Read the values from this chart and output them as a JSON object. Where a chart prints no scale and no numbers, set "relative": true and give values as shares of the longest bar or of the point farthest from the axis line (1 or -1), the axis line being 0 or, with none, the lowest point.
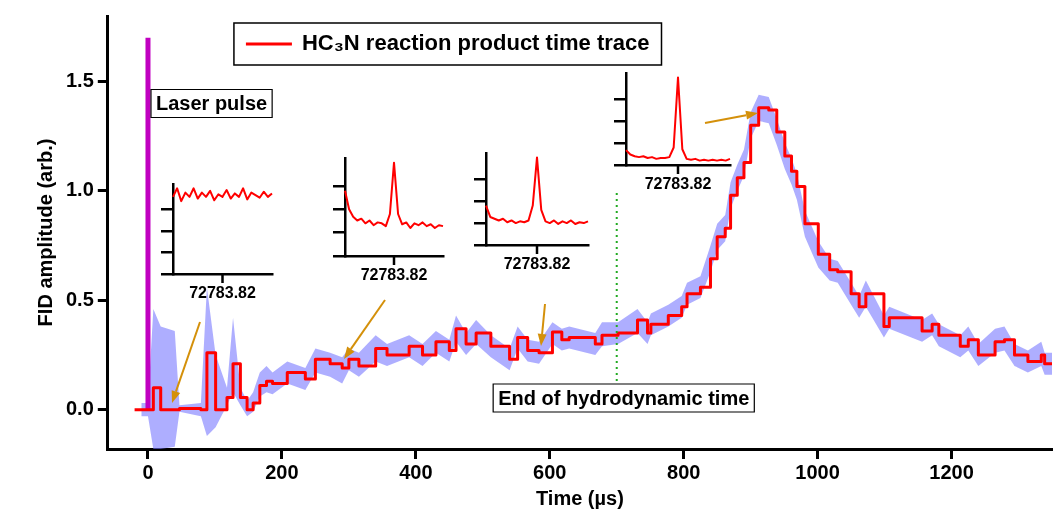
{
  "chart_data": [
    {
      "type": "step",
      "xlabel": "Time (µs)",
      "ylabel": "FID amplitude (arb.)",
      "xlim": [
        -60,
        1350
      ],
      "ylim": [
        -0.18,
        1.8
      ],
      "xticks": [
        0,
        200,
        400,
        600,
        800,
        1000,
        1200
      ],
      "yticks": [
        {
          "value": 0,
          "label": "0.0"
        },
        {
          "value": 0.5,
          "label": "0.5"
        },
        {
          "value": 1,
          "label": "1.0"
        },
        {
          "value": 1.5,
          "label": "1.5"
        }
      ],
      "grid": false,
      "legend": "top",
      "marker": "none",
      "line_style": "solid",
      "series": [
        {
          "name": "HC₃N reaction product time trace",
          "type": "step",
          "color": "#ff0000",
          "x": [
            -20,
            -10,
            0,
            8,
            19,
            40,
            47,
            79,
            88,
            101,
            118,
            127,
            138,
            148,
            157,
            167,
            177,
            186,
            208,
            235,
            250,
            272,
            290,
            300,
            315,
            340,
            357,
            390,
            410,
            430,
            450,
            460,
            475,
            490,
            512,
            540,
            552,
            567,
            584,
            604,
            618,
            629,
            668,
            678,
            702,
            731,
            746,
            751,
            777,
            797,
            805,
            825,
            840,
            850,
            862,
            870,
            880,
            890,
            900,
            912,
            927,
            939,
            951,
            961,
            969,
            981,
            1001,
            1018,
            1030,
            1050,
            1062,
            1072,
            1099,
            1107,
            1156,
            1171,
            1181,
            1213,
            1225,
            1240,
            1265,
            1279,
            1294,
            1314,
            1334,
            1339,
            1350
          ],
          "values": [
            0,
            0,
            0,
            0.1,
            0,
            0,
            0.005,
            0,
            0.26,
            0,
            0.055,
            0.21,
            0.055,
            0,
            0.03,
            0.11,
            0.13,
            0.12,
            0.17,
            0.14,
            0.23,
            0.21,
            0.19,
            0.23,
            0.2,
            0.28,
            0.25,
            0.29,
            0.25,
            0.31,
            0.27,
            0.37,
            0.3,
            0.35,
            0.29,
            0.23,
            0.33,
            0.27,
            0.26,
            0.355,
            0.32,
            0.33,
            0.3,
            0.34,
            0.35,
            0.41,
            0.35,
            0.39,
            0.43,
            0.47,
            0.53,
            0.56,
            0.69,
            0.79,
            0.83,
            0.98,
            1.06,
            1.13,
            1.3,
            1.38,
            1.37,
            1.27,
            1.16,
            1.09,
            1.02,
            0.85,
            0.71,
            0.64,
            0.63,
            0.53,
            0.47,
            0.53,
            0.38,
            0.42,
            0.36,
            0.39,
            0.34,
            0.29,
            0.32,
            0.25,
            0.31,
            0.32,
            0.25,
            0.22,
            0.25,
            0.21,
            0.21
          ],
          "lower": [
            null,
            -0.03,
            -0.03,
            -0.18,
            -0.18,
            -0.17,
            -0.01,
            -0.03,
            -0.12,
            -0.08,
            0.02,
            0.08,
            0.02,
            -0.03,
            -0.01,
            0.06,
            0.08,
            0.07,
            0.12,
            0.09,
            0.17,
            0.15,
            0.12,
            0.18,
            0.15,
            0.22,
            0.2,
            0.24,
            0.2,
            0.26,
            0.22,
            0.31,
            0.25,
            0.3,
            0.24,
            0.18,
            0.28,
            0.22,
            0.21,
            0.3,
            0.27,
            0.28,
            0.25,
            0.29,
            0.3,
            0.35,
            0.3,
            0.34,
            0.38,
            0.42,
            0.48,
            0.51,
            0.63,
            0.73,
            0.77,
            0.92,
            1,
            1.07,
            1.24,
            1.32,
            1.31,
            1.21,
            1.1,
            1.03,
            0.96,
            0.79,
            0.65,
            0.59,
            0.58,
            0.48,
            0.42,
            0.47,
            0.33,
            0.37,
            0.31,
            0.34,
            0.29,
            0.24,
            0.27,
            0.2,
            0.26,
            0.27,
            0.2,
            0.17,
            0.2,
            0.16,
            0.16
          ],
          "upper": [
            null,
            0.03,
            0.03,
            0.46,
            0.38,
            0.36,
            0.02,
            0.03,
            0.56,
            0.25,
            0.1,
            0.42,
            0.1,
            0.04,
            0.08,
            0.17,
            0.2,
            0.17,
            0.22,
            0.19,
            0.28,
            0.26,
            0.24,
            0.28,
            0.26,
            0.34,
            0.3,
            0.34,
            0.3,
            0.36,
            0.32,
            0.43,
            0.35,
            0.41,
            0.34,
            0.28,
            0.38,
            0.32,
            0.31,
            0.4,
            0.37,
            0.38,
            0.35,
            0.4,
            0.4,
            0.46,
            0.4,
            0.44,
            0.48,
            0.52,
            0.58,
            0.61,
            0.75,
            0.85,
            0.89,
            1.04,
            1.12,
            1.19,
            1.36,
            1.44,
            1.43,
            1.33,
            1.22,
            1.15,
            1.08,
            0.91,
            0.77,
            0.69,
            0.68,
            0.58,
            0.52,
            0.59,
            0.43,
            0.47,
            0.41,
            0.44,
            0.39,
            0.34,
            0.38,
            0.3,
            0.37,
            0.38,
            0.3,
            0.27,
            0.31,
            0.26,
            0.26
          ]
        },
        {
          "type": "line",
          "color": "#c000c0",
          "x": [
            0,
            0
          ],
          "values": [
            0,
            1.7
          ]
        }
      ],
      "ref_lines": [
        {
          "axis": "x",
          "value": 700,
          "label": "End of hydrodynamic time",
          "color": "#22aa22",
          "line_style": "dotted"
        }
      ],
      "annotations": [
        {
          "text": "Laser pulse",
          "x": 0,
          "y": 1.4
        }
      ]
    },
    {
      "type": "line",
      "relative": true,
      "marker": "none",
      "color": "#ff0000",
      "categories": [
        null,
        null,
        null,
        null,
        null,
        null,
        null,
        null,
        null,
        null,
        null,
        null,
        null,
        null,
        null,
        null,
        null,
        null,
        null,
        null,
        null,
        null,
        null,
        null,
        null
      ],
      "annotations": [
        "72783.82"
      ],
      "values": [
        0.9,
        1,
        0.85,
        0.95,
        0.9,
        1,
        0.88,
        0.95,
        0.9,
        0.97,
        0.86,
        0.93,
        0.9,
        0.98,
        0.88,
        0.94,
        0.9,
        1,
        0.87,
        0.95,
        0.92,
        0.89,
        0.96,
        0.9,
        0.94
      ]
    },
    {
      "type": "line",
      "relative": true,
      "marker": "none",
      "color": "#ff0000",
      "categories": [
        null,
        null,
        null,
        null,
        null,
        null,
        null,
        null,
        null,
        null,
        null,
        null,
        null,
        null,
        null,
        null,
        null,
        null,
        null,
        null,
        null,
        null,
        null,
        null,
        null
      ],
      "annotations": [
        "72783.82"
      ],
      "values": [
        0.7,
        0.5,
        0.42,
        0.38,
        0.4,
        0.35,
        0.38,
        0.33,
        0.36,
        0.35,
        0.32,
        0.45,
        1,
        0.45,
        0.34,
        0.36,
        0.3,
        0.35,
        0.33,
        0.36,
        0.32,
        0.34,
        0.3,
        0.33,
        0.32
      ]
    },
    {
      "type": "line",
      "relative": true,
      "marker": "none",
      "color": "#ff0000",
      "categories": [
        null,
        null,
        null,
        null,
        null,
        null,
        null,
        null,
        null,
        null,
        null,
        null,
        null,
        null,
        null,
        null,
        null,
        null,
        null,
        null,
        null,
        null,
        null,
        null,
        null
      ],
      "annotations": [
        "72783.82"
      ],
      "values": [
        0.45,
        0.32,
        0.3,
        0.28,
        0.3,
        0.26,
        0.28,
        0.25,
        0.27,
        0.26,
        0.28,
        0.45,
        1,
        0.4,
        0.27,
        0.25,
        0.28,
        0.24,
        0.27,
        0.25,
        0.28,
        0.24,
        0.26,
        0.25,
        0.27
      ]
    },
    {
      "type": "line",
      "relative": true,
      "marker": "none",
      "color": "#ff0000",
      "categories": [
        null,
        null,
        null,
        null,
        null,
        null,
        null,
        null,
        null,
        null,
        null,
        null,
        null,
        null,
        null,
        null,
        null,
        null,
        null,
        null,
        null,
        null,
        null,
        null,
        null
      ],
      "annotations": [
        "72783.82"
      ],
      "values": [
        0.17,
        0.12,
        0.1,
        0.09,
        0.1,
        0.08,
        0.09,
        0.07,
        0.08,
        0.08,
        0.09,
        0.2,
        1,
        0.18,
        0.07,
        0.06,
        0.07,
        0.05,
        0.06,
        0.05,
        0.06,
        0.05,
        0.06,
        0.05,
        0.07
      ]
    }
  ]
}
